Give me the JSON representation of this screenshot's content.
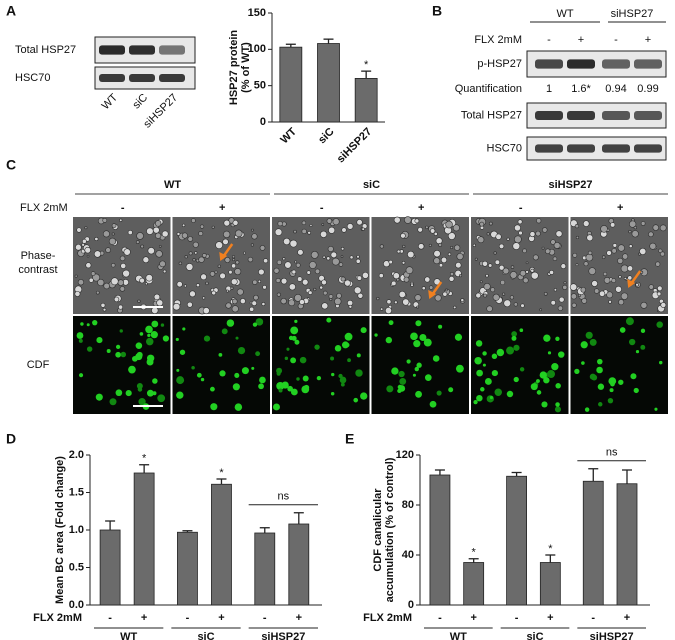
{
  "figure": {
    "panel_labels": [
      "A",
      "B",
      "C",
      "D",
      "E"
    ],
    "A": {
      "blot_rows": [
        "Total HSP27",
        "HSC70"
      ],
      "lanes": [
        "WT",
        "siC",
        "siHSP27"
      ]
    },
    "B": {
      "groups": [
        "WT",
        "siHSP27"
      ],
      "treatment": "FLX 2mM",
      "lanes": [
        "-",
        "+",
        "-",
        "+"
      ],
      "rows": [
        "p-HSP27",
        "Total HSP27",
        "HSC70"
      ],
      "quant_label": "Quantification",
      "quant_values": [
        "1",
        "1.6*",
        "0.94",
        "0.99"
      ]
    },
    "C": {
      "groups": [
        "WT",
        "siC",
        "siHSP27"
      ],
      "treatment": "FLX 2mM",
      "lanes": [
        "-",
        "+",
        "-",
        "+",
        "-",
        "+"
      ],
      "rows": [
        [
          "Phase-",
          "contrast"
        ],
        [
          "CDF"
        ]
      ]
    }
  },
  "chart_data": [
    {
      "type": "bar",
      "ylabel": [
        "HSP27 protein",
        "(% of WT)"
      ],
      "categories": [
        "WT",
        "siC",
        "siHSP27"
      ],
      "values": [
        103,
        108,
        60
      ],
      "errors": [
        4,
        6,
        10
      ],
      "sig_labels": [
        null,
        null,
        "*"
      ],
      "ylim": [
        0,
        150
      ],
      "yticks": [
        0,
        50,
        100,
        150
      ],
      "color": "#6b6b6b"
    },
    {
      "type": "bar",
      "ylabel": [
        "Mean BC area (Fold change)"
      ],
      "categories": [
        "-",
        "+",
        "-",
        "+",
        "-",
        "+"
      ],
      "values": [
        1.0,
        1.76,
        0.97,
        1.61,
        0.96,
        1.08
      ],
      "errors": [
        0.12,
        0.11,
        0.02,
        0.07,
        0.07,
        0.15
      ],
      "sig_labels": [
        null,
        "*",
        null,
        "*",
        null,
        null
      ],
      "groups": [
        "WT",
        "siC",
        "siHSP27"
      ],
      "group_label": "FLX 2mM",
      "group_annotations": [
        null,
        null,
        "ns"
      ],
      "ylim": [
        0,
        2.0
      ],
      "yticks": [
        {
          "value": 0,
          "label": "0.0"
        },
        0.5,
        {
          "value": 1,
          "label": "1.0"
        },
        1.5,
        {
          "value": 2,
          "label": "2.0"
        }
      ],
      "color": "#6b6b6b"
    },
    {
      "type": "bar",
      "ylabel": [
        "CDF canalicular",
        "accumulation (% of control)"
      ],
      "categories": [
        "-",
        "+",
        "-",
        "+",
        "-",
        "+"
      ],
      "values": [
        104,
        34,
        103,
        34,
        99,
        97
      ],
      "errors": [
        4,
        3,
        3,
        6,
        10,
        11
      ],
      "sig_labels": [
        null,
        "*",
        null,
        "*",
        null,
        null
      ],
      "groups": [
        "WT",
        "siC",
        "siHSP27"
      ],
      "group_label": "FLX 2mM",
      "group_annotations": [
        null,
        null,
        "ns"
      ],
      "ylim": [
        0,
        120
      ],
      "yticks": [
        0,
        40,
        80,
        120
      ],
      "color": "#6b6b6b"
    }
  ]
}
